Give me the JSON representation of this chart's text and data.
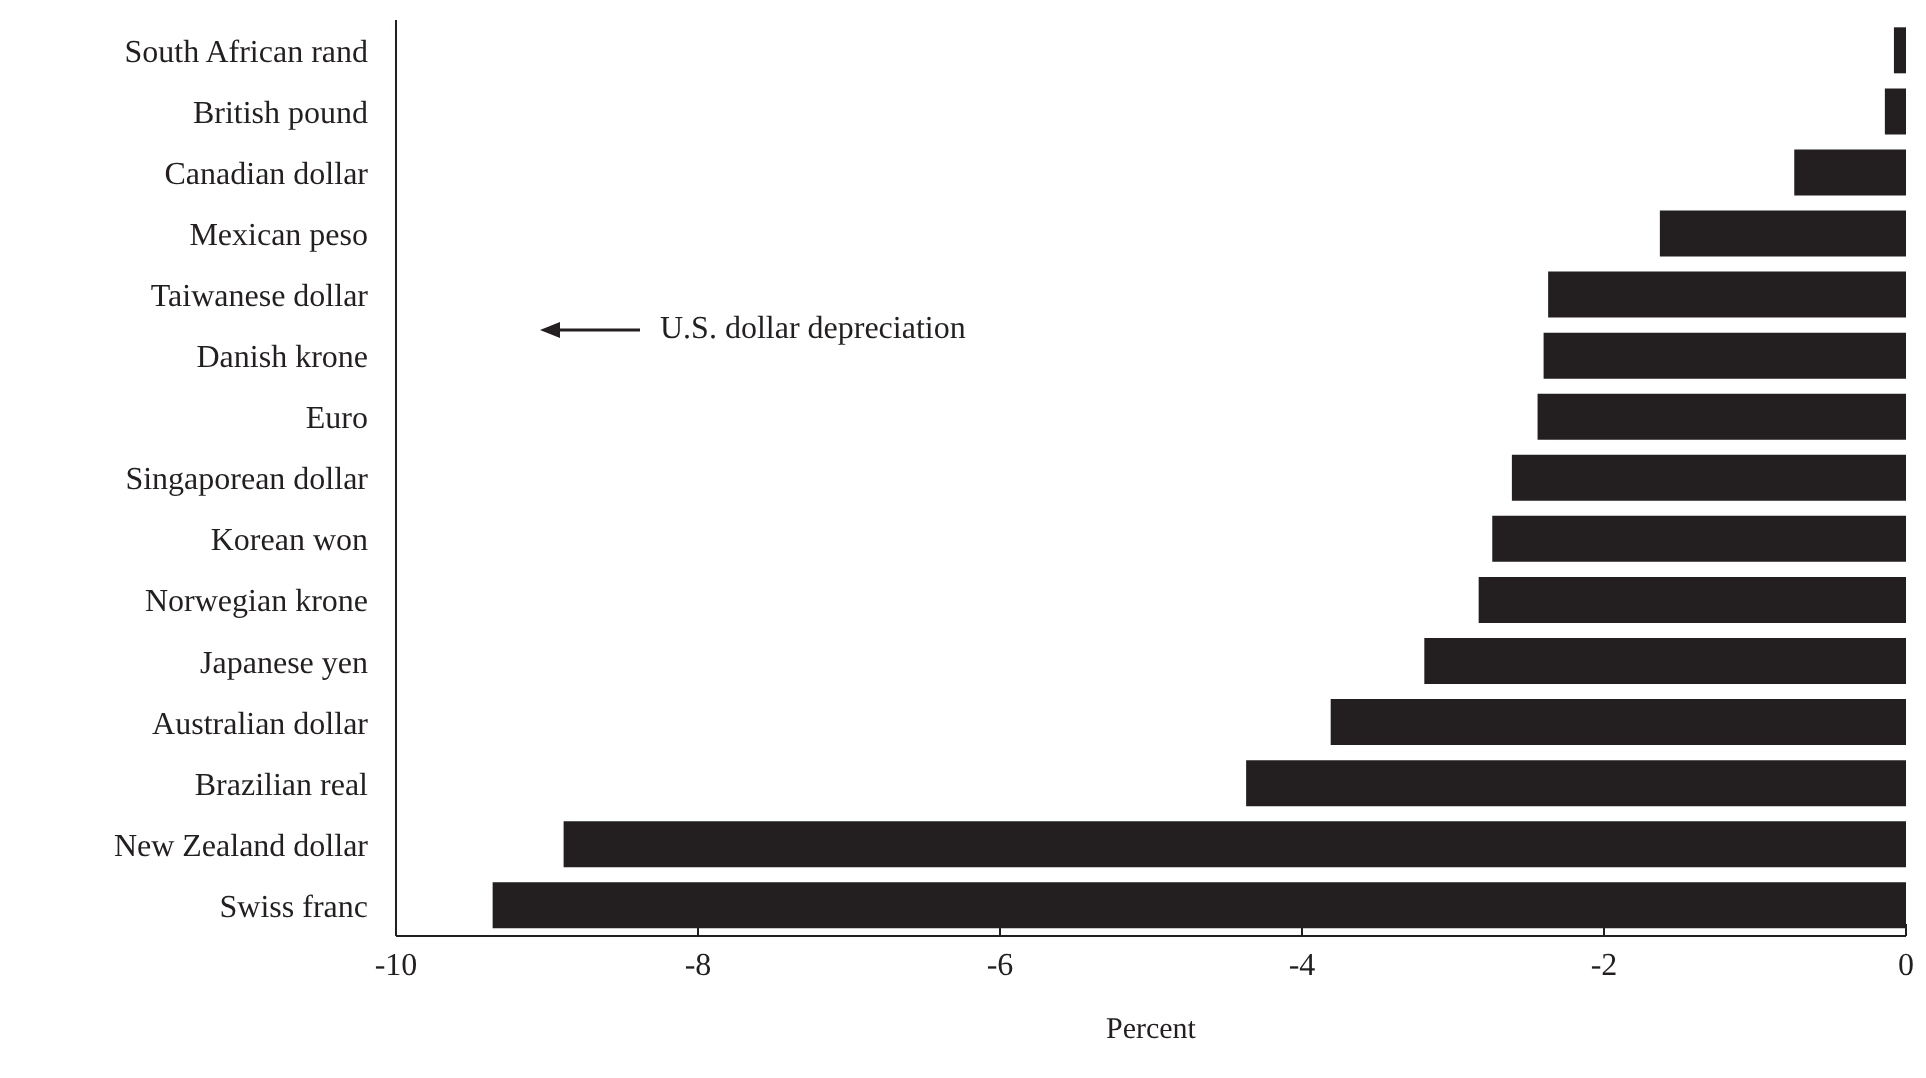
{
  "chart_data": {
    "type": "bar",
    "orientation": "horizontal",
    "xlabel": "Percent",
    "categories": [
      "South African rand",
      "British pound",
      "Canadian dollar",
      "Mexican peso",
      "Taiwanese dollar",
      "Danish krone",
      "Euro",
      "Singaporean dollar",
      "Korean won",
      "Norwegian krone",
      "Japanese yen",
      "Australian dollar",
      "Brazilian real",
      "New Zealand dollar",
      "Swiss franc"
    ],
    "values": [
      -0.08,
      -0.14,
      -0.74,
      -1.63,
      -2.37,
      -2.4,
      -2.44,
      -2.61,
      -2.74,
      -2.83,
      -3.19,
      -3.81,
      -4.37,
      -8.89,
      -9.36
    ],
    "color": "#231f20",
    "xlim": [
      -10,
      0
    ],
    "xticks": [
      -10,
      -8,
      -6,
      -4,
      -2,
      0
    ],
    "annotations": [
      "U.S. dollar depreciation"
    ]
  }
}
